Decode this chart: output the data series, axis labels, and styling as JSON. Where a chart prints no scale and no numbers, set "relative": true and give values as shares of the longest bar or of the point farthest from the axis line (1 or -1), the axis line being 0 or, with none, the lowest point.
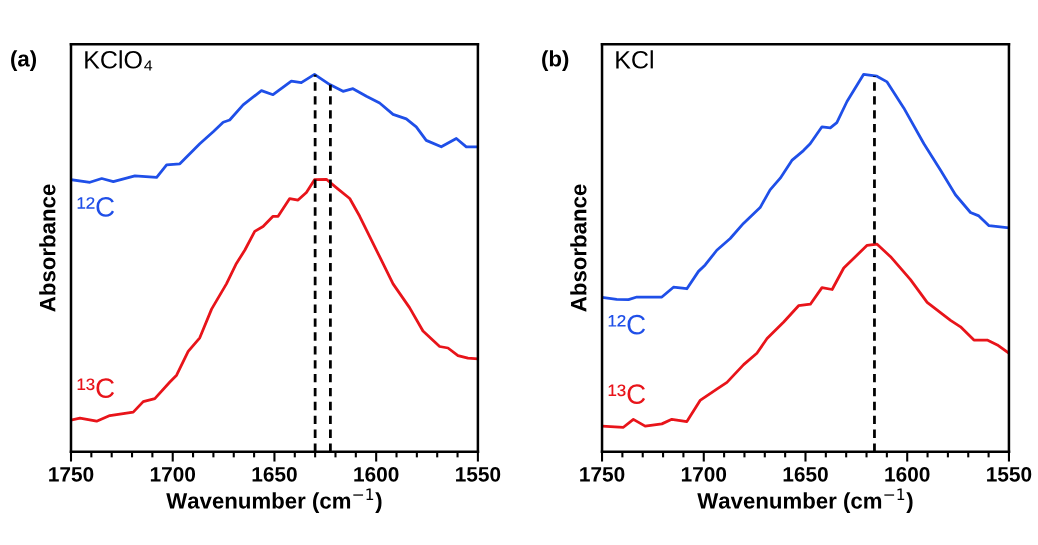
{
  "chart_data": [
    {
      "type": "line",
      "relative": true,
      "xlabel": "Wavenumber (cm$^{−1}$)",
      "ylabel": "Absorbance",
      "annotations": [
        "(a)",
        "KClO₄"
      ],
      "xlim": [
        1750,
        1550
      ],
      "xticks": [
        1750,
        1700,
        1650,
        1600,
        1550
      ],
      "tick_labels": "x",
      "grid": false,
      "line_style": "solid",
      "ref_lines": [
        {
          "axis": "x",
          "value": 1630.0,
          "color": "#000000",
          "line_style": "dashed"
        },
        {
          "axis": "x",
          "value": 1622.5,
          "color": "#000000",
          "line_style": "dashed"
        }
      ],
      "series": [
        {
          "name": "¹²C",
          "color": "#1f4fe8",
          "x": [
            1750,
            1740.7,
            1734.9,
            1729.2,
            1718.6,
            1707.9,
            1703.0,
            1696.5,
            1686.7,
            1680.1,
            1675.2,
            1672.0,
            1665.4,
            1656.4,
            1650.7,
            1641.7,
            1636.8,
            1630.3,
            1622.8,
            1616.3,
            1611.4,
            1604.8,
            1598.3,
            1591.7,
            1585.2,
            1580.3,
            1575.4,
            1568.0,
            1560.6,
            1555.7,
            1550
          ],
          "values": [
            0.721,
            0.714,
            0.724,
            0.716,
            0.731,
            0.727,
            0.76,
            0.763,
            0.816,
            0.848,
            0.873,
            0.879,
            0.919,
            0.957,
            0.946,
            0.982,
            0.978,
            1.0,
            0.973,
            0.955,
            0.962,
            0.942,
            0.924,
            0.894,
            0.882,
            0.861,
            0.825,
            0.808,
            0.83,
            0.808,
            0.808
          ]
        },
        {
          "name": "¹³C",
          "color": "#e8141a",
          "x": [
            1750,
            1745.6,
            1737.4,
            1730.9,
            1719.4,
            1714.5,
            1708.8,
            1701.4,
            1698.1,
            1692.4,
            1686.7,
            1680.9,
            1673.6,
            1668.7,
            1664.6,
            1659.7,
            1655.6,
            1650.7,
            1648.2,
            1642.5,
            1638.4,
            1634.3,
            1630.3,
            1624.5,
            1619.6,
            1613.0,
            1608.1,
            1598.3,
            1591.7,
            1583.6,
            1577.0,
            1568.8,
            1564.7,
            1559.8,
            1554.9,
            1550
          ],
          "values": [
            0.084,
            0.089,
            0.081,
            0.096,
            0.105,
            0.133,
            0.141,
            0.185,
            0.203,
            0.266,
            0.302,
            0.378,
            0.445,
            0.499,
            0.534,
            0.584,
            0.597,
            0.624,
            0.624,
            0.671,
            0.667,
            0.687,
            0.721,
            0.722,
            0.7,
            0.671,
            0.624,
            0.517,
            0.445,
            0.382,
            0.32,
            0.279,
            0.275,
            0.255,
            0.248,
            0.246
          ]
        }
      ]
    },
    {
      "type": "line",
      "relative": true,
      "xlabel": "Wavenumber (cm$^{−1}$)",
      "ylabel": "Absorbance",
      "annotations": [
        "(b)",
        "KCl"
      ],
      "xlim": [
        1750,
        1550
      ],
      "xticks": [
        1750,
        1700,
        1650,
        1600,
        1550
      ],
      "tick_labels": "x",
      "grid": false,
      "line_style": "solid",
      "ref_lines": [
        {
          "axis": "x",
          "value": 1616.1,
          "color": "#000000",
          "line_style": "dashed"
        }
      ],
      "series": [
        {
          "name": "¹²C",
          "color": "#1f4fe8",
          "x": [
            1750,
            1742.8,
            1737.0,
            1732.9,
            1720.6,
            1714.9,
            1708.3,
            1702.6,
            1699.3,
            1693.6,
            1687.0,
            1680.5,
            1672.3,
            1667.4,
            1662.4,
            1656.7,
            1651.0,
            1647.7,
            1641.9,
            1637.8,
            1634.6,
            1629.6,
            1621.4,
            1614.9,
            1609.9,
            1601.7,
            1591.8,
            1583.6,
            1576.3,
            1568.9,
            1564.8,
            1559.8,
            1550
          ],
          "values": [
            0.409,
            0.404,
            0.403,
            0.41,
            0.41,
            0.436,
            0.432,
            0.478,
            0.495,
            0.534,
            0.565,
            0.605,
            0.647,
            0.694,
            0.725,
            0.772,
            0.798,
            0.816,
            0.861,
            0.858,
            0.872,
            0.928,
            1.0,
            0.995,
            0.98,
            0.911,
            0.816,
            0.746,
            0.681,
            0.634,
            0.625,
            0.599,
            0.593
          ]
        },
        {
          "name": "¹³C",
          "color": "#e8141a",
          "x": [
            1750,
            1739.5,
            1734.6,
            1728.8,
            1720.6,
            1715.7,
            1708.3,
            1701.8,
            1693.6,
            1688.6,
            1680.4,
            1673.9,
            1668.9,
            1660.7,
            1653.4,
            1647.6,
            1641.9,
            1636.9,
            1631.2,
            1619.7,
            1614.8,
            1608.2,
            1598.4,
            1590.2,
            1578.7,
            1573.8,
            1567.2,
            1560.7,
            1555.7,
            1550
          ],
          "values": [
            0.068,
            0.065,
            0.086,
            0.068,
            0.074,
            0.086,
            0.08,
            0.136,
            0.166,
            0.184,
            0.231,
            0.261,
            0.3,
            0.344,
            0.387,
            0.391,
            0.435,
            0.43,
            0.487,
            0.547,
            0.55,
            0.517,
            0.456,
            0.396,
            0.348,
            0.331,
            0.296,
            0.296,
            0.283,
            0.261
          ]
        }
      ]
    }
  ]
}
